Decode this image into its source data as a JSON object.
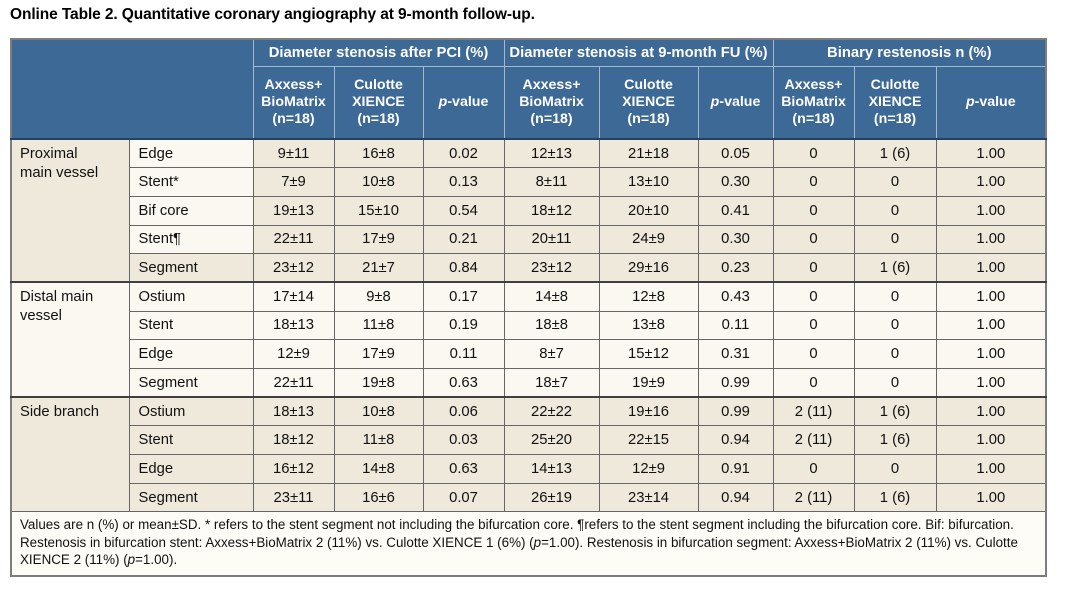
{
  "title": "Online Table 2. Quantitative coronary angiography at 9-month follow-up.",
  "colors": {
    "header_blue": "#3d6996",
    "header_divider": "#a7b8ca",
    "header_bottom_line": "#24425d",
    "row_cream": "#eee9da",
    "row_white": "#faf8f1",
    "grid_line": "#666666",
    "group_separator": "#3f3f3f",
    "outer_border": "#7d7d7d",
    "footer_bg": "#fdfcf7",
    "text": "#111111"
  },
  "header": {
    "groups": [
      "Diameter stenosis after PCI (%)",
      "Diameter stenosis at 9-month FU (%)",
      "Binary restenosis n (%)"
    ],
    "subcolumns": [
      {
        "lines": [
          "Axxess+",
          "BioMatrix",
          "(n=18)"
        ]
      },
      {
        "lines": [
          "Culotte",
          "XIENCE",
          "(n=18)"
        ]
      },
      {
        "italic": "p",
        "rest": "-value"
      }
    ]
  },
  "body": {
    "groups": [
      {
        "label_lines": [
          "Proximal",
          "main vessel"
        ],
        "shade": "cream",
        "rows": [
          {
            "label": "Edge",
            "label_shade": "white",
            "values": [
              "9±11",
              "16±8",
              "0.02",
              "12±13",
              "21±18",
              "0.05",
              "0",
              "1 (6)",
              "1.00"
            ]
          },
          {
            "label": "Stent*",
            "label_shade": "white",
            "values": [
              "7±9",
              "10±8",
              "0.13",
              "8±11",
              "13±10",
              "0.30",
              "0",
              "0",
              "1.00"
            ]
          },
          {
            "label": "Bif core",
            "label_shade": "white",
            "values": [
              "19±13",
              "15±10",
              "0.54",
              "18±12",
              "20±10",
              "0.41",
              "0",
              "0",
              "1.00"
            ]
          },
          {
            "label": "Stent¶",
            "label_shade": "white",
            "values": [
              "22±11",
              "17±9",
              "0.21",
              "20±11",
              "24±9",
              "0.30",
              "0",
              "0",
              "1.00"
            ]
          },
          {
            "label": "Segment",
            "values": [
              "23±12",
              "21±7",
              "0.84",
              "23±12",
              "29±16",
              "0.23",
              "0",
              "1 (6)",
              "1.00"
            ]
          }
        ]
      },
      {
        "label_lines": [
          "Distal main",
          "vessel"
        ],
        "shade": "white",
        "rows": [
          {
            "label": "Ostium",
            "values": [
              "17±14",
              "9±8",
              "0.17",
              "14±8",
              "12±8",
              "0.43",
              "0",
              "0",
              "1.00"
            ]
          },
          {
            "label": "Stent",
            "values": [
              "18±13",
              "11±8",
              "0.19",
              "18±8",
              "13±8",
              "0.11",
              "0",
              "0",
              "1.00"
            ]
          },
          {
            "label": "Edge",
            "values": [
              "12±9",
              "17±9",
              "0.11",
              "8±7",
              "15±12",
              "0.31",
              "0",
              "0",
              "1.00"
            ]
          },
          {
            "label": "Segment",
            "values": [
              "22±11",
              "19±8",
              "0.63",
              "18±7",
              "19±9",
              "0.99",
              "0",
              "0",
              "1.00"
            ]
          }
        ]
      },
      {
        "label_lines": [
          "Side branch"
        ],
        "shade": "cream",
        "rows": [
          {
            "label": "Ostium",
            "values": [
              "18±13",
              "10±8",
              "0.06",
              "22±22",
              "19±16",
              "0.99",
              "2 (11)",
              "1 (6)",
              "1.00"
            ]
          },
          {
            "label": "Stent",
            "values": [
              "18±12",
              "11±8",
              "0.03",
              "25±20",
              "22±15",
              "0.94",
              "2 (11)",
              "1 (6)",
              "1.00"
            ]
          },
          {
            "label": "Edge",
            "values": [
              "16±12",
              "14±8",
              "0.63",
              "14±13",
              "12±9",
              "0.91",
              "0",
              "0",
              "1.00"
            ]
          },
          {
            "label": "Segment",
            "values": [
              "23±11",
              "16±6",
              "0.07",
              "26±19",
              "23±14",
              "0.94",
              "2 (11)",
              "1 (6)",
              "1.00"
            ]
          }
        ]
      }
    ]
  },
  "footnote_segments": [
    {
      "text": "Values are n (%) or mean±SD. * refers to the stent segment not including the bifurcation core. ¶refers to the stent segment including the bifurcation core. Bif: bifurcation. Restenosis in bifurcation stent: Axxess+BioMatrix 2 (11%) vs. Culotte XIENCE 1 (6%) (",
      "italic": false
    },
    {
      "text": "p",
      "italic": true
    },
    {
      "text": "=1.00). Restenosis in bifurcation segment: Axxess+BioMatrix 2 (11%) vs. Culotte XIENCE 2 (11%) (",
      "italic": false
    },
    {
      "text": "p",
      "italic": true
    },
    {
      "text": "=1.00).",
      "italic": false
    }
  ]
}
